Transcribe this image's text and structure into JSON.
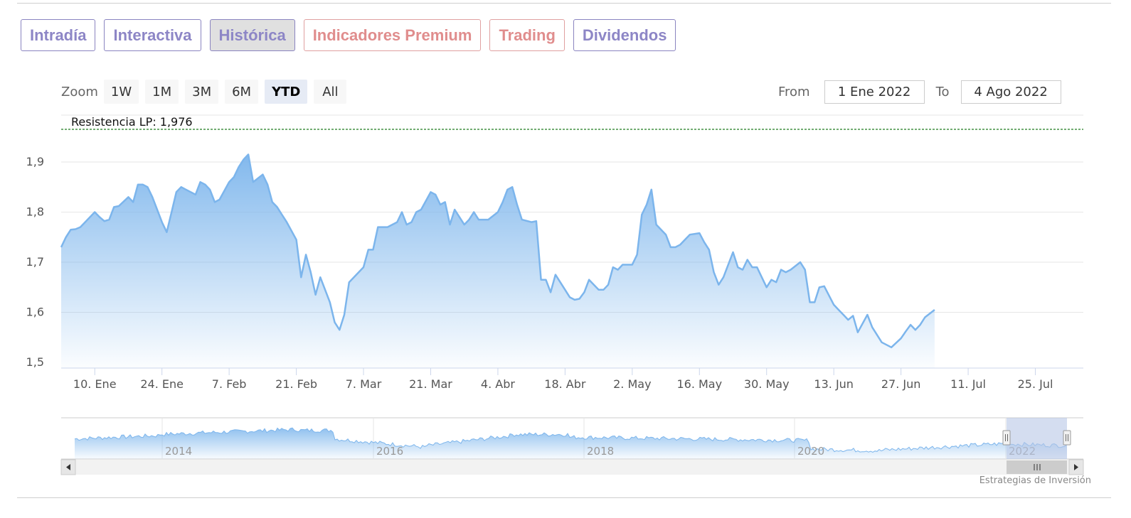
{
  "tabs": [
    {
      "label": "Intradía",
      "kind": "normal",
      "active": false
    },
    {
      "label": "Interactiva",
      "kind": "normal",
      "active": false
    },
    {
      "label": "Histórica",
      "kind": "normal",
      "active": true
    },
    {
      "label": "Indicadores Premium",
      "kind": "premium",
      "active": false
    },
    {
      "label": "Trading",
      "kind": "premium",
      "active": false
    },
    {
      "label": "Dividendos",
      "kind": "normal",
      "active": false
    }
  ],
  "zoom": {
    "label": "Zoom",
    "options": [
      "1W",
      "1M",
      "3M",
      "6M",
      "YTD",
      "All"
    ],
    "selected": "YTD"
  },
  "range": {
    "from_label": "From",
    "from_value": "1 Ene 2022",
    "to_label": "To",
    "to_value": "4 Ago 2022"
  },
  "colors": {
    "series": "#7cb5ec",
    "resistance": "#1f7a1f",
    "tab_text": "#8d86c6",
    "premium_text": "#e08d8d",
    "navigator_mask": "#b8c6e6"
  },
  "credit": "Estrategias de Inversión",
  "chart_data": {
    "type": "area",
    "title": "",
    "xlabel": "",
    "ylabel": "",
    "ylim": [
      1.5,
      1.97
    ],
    "yticks": [
      1.5,
      1.6,
      1.7,
      1.8,
      1.9
    ],
    "ytick_labels": [
      "1,5",
      "1,6",
      "1,7",
      "1,8",
      "1,9"
    ],
    "xticks": [
      "2022-01-10",
      "2022-01-24",
      "2022-02-07",
      "2022-02-21",
      "2022-03-07",
      "2022-03-21",
      "2022-04-04",
      "2022-04-18",
      "2022-05-02",
      "2022-05-16",
      "2022-05-30",
      "2022-06-13",
      "2022-06-27",
      "2022-07-11",
      "2022-07-25"
    ],
    "xtick_labels": [
      "10. Ene",
      "24. Ene",
      "7. Feb",
      "21. Feb",
      "7. Mar",
      "21. Mar",
      "4. Abr",
      "18. Abr",
      "2. May",
      "16. May",
      "30. May",
      "13. Jun",
      "27. Jun",
      "11. Jul",
      "25. Jul"
    ],
    "xlim": [
      "2022-01-03",
      "2022-08-04"
    ],
    "plot_line": {
      "label": "Resistencia LP: 1,976",
      "value": 1.976
    },
    "grid": true,
    "legend": "none",
    "series": [
      {
        "points": [
          [
            "2022-01-03",
            1.73
          ],
          [
            "2022-01-04",
            1.75
          ],
          [
            "2022-01-05",
            1.765
          ],
          [
            "2022-01-06",
            1.766
          ],
          [
            "2022-01-07",
            1.77
          ],
          [
            "2022-01-08",
            1.78
          ],
          [
            "2022-01-10",
            1.8
          ],
          [
            "2022-01-11",
            1.79
          ],
          [
            "2022-01-12",
            1.782
          ],
          [
            "2022-01-13",
            1.785
          ],
          [
            "2022-01-14",
            1.81
          ],
          [
            "2022-01-15",
            1.812
          ],
          [
            "2022-01-17",
            1.83
          ],
          [
            "2022-01-18",
            1.82
          ],
          [
            "2022-01-19",
            1.855
          ],
          [
            "2022-01-20",
            1.855
          ],
          [
            "2022-01-21",
            1.85
          ],
          [
            "2022-01-22",
            1.83
          ],
          [
            "2022-01-24",
            1.78
          ],
          [
            "2022-01-25",
            1.76
          ],
          [
            "2022-01-26",
            1.8
          ],
          [
            "2022-01-27",
            1.84
          ],
          [
            "2022-01-28",
            1.85
          ],
          [
            "2022-01-29",
            1.845
          ],
          [
            "2022-01-31",
            1.835
          ],
          [
            "2022-02-01",
            1.86
          ],
          [
            "2022-02-02",
            1.855
          ],
          [
            "2022-02-03",
            1.845
          ],
          [
            "2022-02-04",
            1.82
          ],
          [
            "2022-02-05",
            1.825
          ],
          [
            "2022-02-07",
            1.86
          ],
          [
            "2022-02-08",
            1.87
          ],
          [
            "2022-02-09",
            1.89
          ],
          [
            "2022-02-10",
            1.905
          ],
          [
            "2022-02-11",
            1.915
          ],
          [
            "2022-02-12",
            1.86
          ],
          [
            "2022-02-14",
            1.875
          ],
          [
            "2022-02-15",
            1.855
          ],
          [
            "2022-02-16",
            1.82
          ],
          [
            "2022-02-17",
            1.81
          ],
          [
            "2022-02-18",
            1.795
          ],
          [
            "2022-02-19",
            1.78
          ],
          [
            "2022-02-21",
            1.745
          ],
          [
            "2022-02-22",
            1.67
          ],
          [
            "2022-02-23",
            1.715
          ],
          [
            "2022-02-24",
            1.68
          ],
          [
            "2022-02-25",
            1.635
          ],
          [
            "2022-02-26",
            1.67
          ],
          [
            "2022-02-28",
            1.62
          ],
          [
            "2022-03-01",
            1.58
          ],
          [
            "2022-03-02",
            1.565
          ],
          [
            "2022-03-03",
            1.595
          ],
          [
            "2022-03-04",
            1.66
          ],
          [
            "2022-03-05",
            1.67
          ],
          [
            "2022-03-07",
            1.69
          ],
          [
            "2022-03-08",
            1.725
          ],
          [
            "2022-03-09",
            1.725
          ],
          [
            "2022-03-10",
            1.77
          ],
          [
            "2022-03-11",
            1.77
          ],
          [
            "2022-03-12",
            1.77
          ],
          [
            "2022-03-14",
            1.78
          ],
          [
            "2022-03-15",
            1.8
          ],
          [
            "2022-03-16",
            1.775
          ],
          [
            "2022-03-17",
            1.78
          ],
          [
            "2022-03-18",
            1.8
          ],
          [
            "2022-03-19",
            1.805
          ],
          [
            "2022-03-21",
            1.84
          ],
          [
            "2022-03-22",
            1.835
          ],
          [
            "2022-03-23",
            1.815
          ],
          [
            "2022-03-24",
            1.82
          ],
          [
            "2022-03-25",
            1.775
          ],
          [
            "2022-03-26",
            1.805
          ],
          [
            "2022-03-28",
            1.775
          ],
          [
            "2022-03-29",
            1.785
          ],
          [
            "2022-03-30",
            1.8
          ],
          [
            "2022-03-31",
            1.785
          ],
          [
            "2022-04-01",
            1.785
          ],
          [
            "2022-04-02",
            1.785
          ],
          [
            "2022-04-04",
            1.8
          ],
          [
            "2022-04-05",
            1.82
          ],
          [
            "2022-04-06",
            1.845
          ],
          [
            "2022-04-07",
            1.85
          ],
          [
            "2022-04-08",
            1.815
          ],
          [
            "2022-04-09",
            1.785
          ],
          [
            "2022-04-11",
            1.78
          ],
          [
            "2022-04-12",
            1.782
          ],
          [
            "2022-04-13",
            1.665
          ],
          [
            "2022-04-14",
            1.665
          ],
          [
            "2022-04-15",
            1.64
          ],
          [
            "2022-04-16",
            1.675
          ],
          [
            "2022-04-18",
            1.645
          ],
          [
            "2022-04-19",
            1.63
          ],
          [
            "2022-04-20",
            1.625
          ],
          [
            "2022-04-21",
            1.627
          ],
          [
            "2022-04-22",
            1.64
          ],
          [
            "2022-04-23",
            1.665
          ],
          [
            "2022-04-25",
            1.645
          ],
          [
            "2022-04-26",
            1.645
          ],
          [
            "2022-04-27",
            1.655
          ],
          [
            "2022-04-28",
            1.69
          ],
          [
            "2022-04-29",
            1.685
          ],
          [
            "2022-04-30",
            1.695
          ],
          [
            "2022-05-02",
            1.695
          ],
          [
            "2022-05-03",
            1.715
          ],
          [
            "2022-05-04",
            1.795
          ],
          [
            "2022-05-05",
            1.815
          ],
          [
            "2022-05-06",
            1.845
          ],
          [
            "2022-05-07",
            1.775
          ],
          [
            "2022-05-09",
            1.755
          ],
          [
            "2022-05-10",
            1.73
          ],
          [
            "2022-05-11",
            1.73
          ],
          [
            "2022-05-12",
            1.735
          ],
          [
            "2022-05-13",
            1.745
          ],
          [
            "2022-05-14",
            1.755
          ],
          [
            "2022-05-16",
            1.758
          ],
          [
            "2022-05-17",
            1.74
          ],
          [
            "2022-05-18",
            1.725
          ],
          [
            "2022-05-19",
            1.68
          ],
          [
            "2022-05-20",
            1.655
          ],
          [
            "2022-05-21",
            1.67
          ],
          [
            "2022-05-23",
            1.72
          ],
          [
            "2022-05-24",
            1.69
          ],
          [
            "2022-05-25",
            1.685
          ],
          [
            "2022-05-26",
            1.705
          ],
          [
            "2022-05-27",
            1.69
          ],
          [
            "2022-05-28",
            1.69
          ],
          [
            "2022-05-30",
            1.65
          ],
          [
            "2022-05-31",
            1.665
          ],
          [
            "2022-06-01",
            1.66
          ],
          [
            "2022-06-02",
            1.685
          ],
          [
            "2022-06-03",
            1.68
          ],
          [
            "2022-06-04",
            1.685
          ],
          [
            "2022-06-06",
            1.7
          ],
          [
            "2022-06-07",
            1.685
          ],
          [
            "2022-06-08",
            1.62
          ],
          [
            "2022-06-09",
            1.62
          ],
          [
            "2022-06-10",
            1.65
          ],
          [
            "2022-06-11",
            1.652
          ],
          [
            "2022-06-13",
            1.615
          ],
          [
            "2022-06-14",
            1.605
          ],
          [
            "2022-06-15",
            1.595
          ],
          [
            "2022-06-16",
            1.585
          ],
          [
            "2022-06-17",
            1.593
          ],
          [
            "2022-06-18",
            1.56
          ],
          [
            "2022-06-20",
            1.595
          ],
          [
            "2022-06-21",
            1.57
          ],
          [
            "2022-06-22",
            1.555
          ],
          [
            "2022-06-23",
            1.54
          ],
          [
            "2022-06-24",
            1.535
          ],
          [
            "2022-06-25",
            1.53
          ],
          [
            "2022-06-27",
            1.548
          ],
          [
            "2022-06-28",
            1.562
          ],
          [
            "2022-06-29",
            1.575
          ],
          [
            "2022-06-30",
            1.565
          ],
          [
            "2022-07-01",
            1.575
          ],
          [
            "2022-07-02",
            1.59
          ],
          [
            "2022-07-04",
            1.605
          ]
        ]
      }
    ],
    "navigator": {
      "xtick_labels": [
        "2014",
        "2016",
        "2018",
        "2020",
        "2022"
      ],
      "selection": "YTD 2022"
    }
  }
}
